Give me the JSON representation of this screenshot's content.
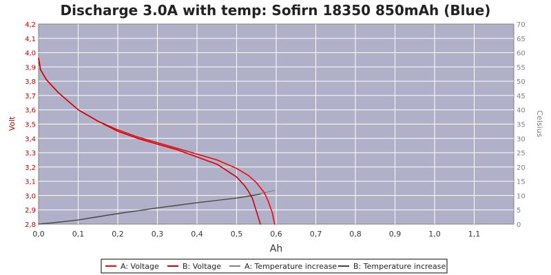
{
  "chart_data": {
    "type": "line",
    "title": "Discharge 3.0A with temp: Sofirn 18350 850mAh (Blue)",
    "xlabel": "Ah",
    "ylabel_left": "Volt",
    "ylabel_right": "Celsius",
    "xlim": [
      0,
      1.2
    ],
    "ylim_left": [
      2.8,
      4.2
    ],
    "ylim_right": [
      0,
      70
    ],
    "x_ticks": [
      "0,0",
      "0,1",
      "0,2",
      "0,3",
      "0,4",
      "0,5",
      "0,6",
      "0,7",
      "0,8",
      "0,9",
      "1,0",
      "1,1"
    ],
    "y_left_ticks": [
      "2,8",
      "2,9",
      "3,0",
      "3,1",
      "3,2",
      "3,3",
      "3,4",
      "3,5",
      "3,6",
      "3,7",
      "3,8",
      "3,9",
      "4,0",
      "4,1",
      "4,2"
    ],
    "y_right_ticks": [
      "0",
      "5",
      "10",
      "15",
      "20",
      "25",
      "30",
      "35",
      "40",
      "45",
      "50",
      "55",
      "60",
      "65",
      "70"
    ],
    "grid": true,
    "legend_position": "bottom",
    "series": [
      {
        "name": "A: Voltage",
        "axis": "left",
        "color": "#ff0000",
        "x": [
          0,
          0.005,
          0.02,
          0.05,
          0.1,
          0.15,
          0.2,
          0.25,
          0.3,
          0.35,
          0.4,
          0.45,
          0.5,
          0.53,
          0.55,
          0.57,
          0.58,
          0.59,
          0.596
        ],
        "y": [
          3.96,
          3.88,
          3.81,
          3.72,
          3.6,
          3.52,
          3.46,
          3.41,
          3.37,
          3.33,
          3.29,
          3.25,
          3.19,
          3.14,
          3.09,
          3.02,
          2.96,
          2.88,
          2.8
        ]
      },
      {
        "name": "B: Voltage",
        "axis": "left",
        "color": "#cc0000",
        "x": [
          0,
          0.005,
          0.02,
          0.05,
          0.1,
          0.15,
          0.2,
          0.25,
          0.3,
          0.35,
          0.4,
          0.45,
          0.5,
          0.52,
          0.53,
          0.54,
          0.55,
          0.56
        ],
        "y": [
          3.96,
          3.88,
          3.81,
          3.72,
          3.6,
          3.52,
          3.45,
          3.4,
          3.36,
          3.32,
          3.27,
          3.22,
          3.13,
          3.07,
          3.03,
          2.98,
          2.89,
          2.8
        ]
      },
      {
        "name": "A: Temperature increase",
        "axis": "right",
        "color": "#808080",
        "x": [
          0,
          0.05,
          0.1,
          0.2,
          0.3,
          0.4,
          0.5,
          0.55,
          0.596
        ],
        "y": [
          0,
          0.6,
          1.4,
          3.6,
          5.6,
          7.4,
          9.2,
          10.4,
          11.8
        ]
      },
      {
        "name": "B: Temperature increase",
        "axis": "right",
        "color": "#404040",
        "x": [
          0,
          0.05,
          0.1,
          0.2,
          0.3,
          0.4,
          0.5,
          0.56
        ],
        "y": [
          0,
          0.7,
          1.5,
          3.7,
          5.7,
          7.5,
          9.1,
          10.4
        ]
      }
    ]
  },
  "colors": {
    "plot_background": "#b0b0c8",
    "grid": "#ffffff",
    "left_axis_text": "#cc0000",
    "right_axis_text": "#7f7f7f"
  }
}
